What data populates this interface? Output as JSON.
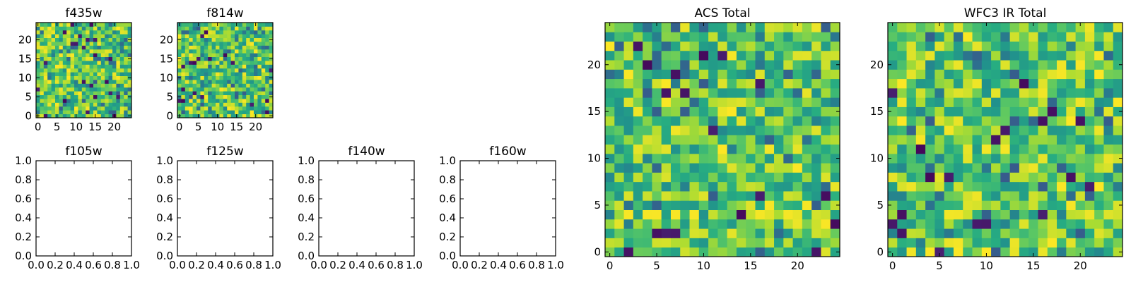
{
  "figure": {
    "background": "#ffffff",
    "colormap": "viridis"
  },
  "chart_data": [
    {
      "id": "f435w",
      "type": "heatmap",
      "title": "f435w",
      "empty": false,
      "grid_size": 25,
      "xlim": [
        -0.5,
        24.5
      ],
      "ylim": [
        -0.5,
        24.5
      ],
      "xticks": [
        0,
        5,
        10,
        15,
        20
      ],
      "yticks": [
        0,
        5,
        10,
        15,
        20
      ],
      "xtick_labels": [
        "0",
        "5",
        "10",
        "15",
        "20"
      ],
      "ytick_labels": [
        "0",
        "5",
        "10",
        "15",
        "20"
      ]
    },
    {
      "id": "f814w",
      "type": "heatmap",
      "title": "f814w",
      "empty": false,
      "grid_size": 25,
      "xlim": [
        -0.5,
        24.5
      ],
      "ylim": [
        -0.5,
        24.5
      ],
      "xticks": [
        0,
        5,
        10,
        15,
        20
      ],
      "yticks": [
        0,
        5,
        10,
        15,
        20
      ],
      "xtick_labels": [
        "0",
        "5",
        "10",
        "15",
        "20"
      ],
      "ytick_labels": [
        "0",
        "5",
        "10",
        "15",
        "20"
      ]
    },
    {
      "id": "f105w",
      "type": "heatmap",
      "title": "f105w",
      "empty": true,
      "xlim": [
        0,
        1
      ],
      "ylim": [
        0,
        1
      ],
      "xticks": [
        0,
        0.2,
        0.4,
        0.6,
        0.8,
        1
      ],
      "yticks": [
        0,
        0.2,
        0.4,
        0.6,
        0.8,
        1
      ],
      "xtick_labels": [
        "0.0",
        "0.2",
        "0.4",
        "0.6",
        "0.8",
        "1.0"
      ],
      "ytick_labels": [
        "0.0",
        "0.2",
        "0.4",
        "0.6",
        "0.8",
        "1.0"
      ]
    },
    {
      "id": "f125w",
      "type": "heatmap",
      "title": "f125w",
      "empty": true,
      "xlim": [
        0,
        1
      ],
      "ylim": [
        0,
        1
      ],
      "xticks": [
        0,
        0.2,
        0.4,
        0.6,
        0.8,
        1
      ],
      "yticks": [
        0,
        0.2,
        0.4,
        0.6,
        0.8,
        1
      ],
      "xtick_labels": [
        "0.0",
        "0.2",
        "0.4",
        "0.6",
        "0.8",
        "1.0"
      ],
      "ytick_labels": [
        "0.0",
        "0.2",
        "0.4",
        "0.6",
        "0.8",
        "1.0"
      ]
    },
    {
      "id": "f140w",
      "type": "heatmap",
      "title": "f140w",
      "empty": true,
      "xlim": [
        0,
        1
      ],
      "ylim": [
        0,
        1
      ],
      "xticks": [
        0,
        0.2,
        0.4,
        0.6,
        0.8,
        1
      ],
      "yticks": [
        0,
        0.2,
        0.4,
        0.6,
        0.8,
        1
      ],
      "xtick_labels": [
        "0.0",
        "0.2",
        "0.4",
        "0.6",
        "0.8",
        "1.0"
      ],
      "ytick_labels": [
        "0.0",
        "0.2",
        "0.4",
        "0.6",
        "0.8",
        "1.0"
      ]
    },
    {
      "id": "f160w",
      "type": "heatmap",
      "title": "f160w",
      "empty": true,
      "xlim": [
        0,
        1
      ],
      "ylim": [
        0,
        1
      ],
      "xticks": [
        0,
        0.2,
        0.4,
        0.6,
        0.8,
        1
      ],
      "yticks": [
        0,
        0.2,
        0.4,
        0.6,
        0.8,
        1
      ],
      "xtick_labels": [
        "0.0",
        "0.2",
        "0.4",
        "0.6",
        "0.8",
        "1.0"
      ],
      "ytick_labels": [
        "0.0",
        "0.2",
        "0.4",
        "0.6",
        "0.8",
        "1.0"
      ]
    },
    {
      "id": "acs-total",
      "type": "heatmap",
      "title": "ACS Total",
      "empty": false,
      "grid_size": 25,
      "xlim": [
        -0.5,
        24.5
      ],
      "ylim": [
        -0.5,
        24.5
      ],
      "xticks": [
        0,
        5,
        10,
        15,
        20
      ],
      "yticks": [
        0,
        5,
        10,
        15,
        20
      ],
      "xtick_labels": [
        "0",
        "5",
        "10",
        "15",
        "20"
      ],
      "ytick_labels": [
        "0",
        "5",
        "10",
        "15",
        "20"
      ]
    },
    {
      "id": "wfc3-ir-total",
      "type": "heatmap",
      "title": "WFC3 IR Total",
      "empty": false,
      "grid_size": 25,
      "xlim": [
        -0.5,
        24.5
      ],
      "ylim": [
        -0.5,
        24.5
      ],
      "xticks": [
        0,
        5,
        10,
        15,
        20
      ],
      "yticks": [
        0,
        5,
        10,
        15,
        20
      ],
      "xtick_labels": [
        "0",
        "5",
        "10",
        "15",
        "20"
      ],
      "ytick_labels": [
        "0",
        "5",
        "10",
        "15",
        "20"
      ]
    }
  ]
}
